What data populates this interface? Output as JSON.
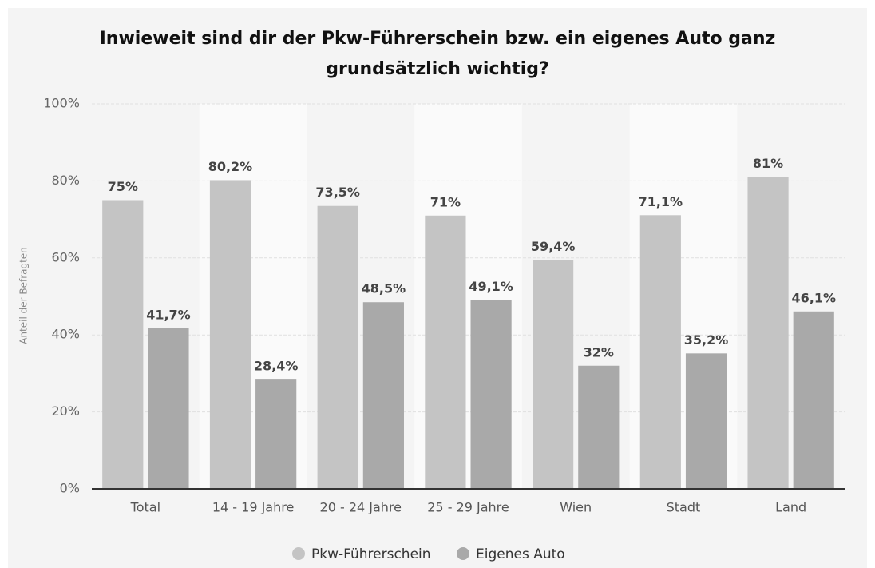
{
  "chart_data": {
    "type": "bar",
    "title": "Inwieweit sind dir der Pkw-Führerschein bzw. ein eigenes Auto ganz grundsätzlich wichtig?",
    "y_label": "Anteil der Befragten",
    "categories": [
      "Total",
      "14 - 19 Jahre",
      "20 - 24 Jahre",
      "25 - 29 Jahre",
      "Wien",
      "Stadt",
      "Land"
    ],
    "series": [
      {
        "name": "Pkw-Führerschein",
        "color": "#c4c4c4",
        "values": [
          75,
          80.2,
          73.5,
          71,
          59.4,
          71.1,
          81
        ],
        "value_labels": [
          "75%",
          "80,2%",
          "73,5%",
          "71%",
          "59,4%",
          "71,1%",
          "81%"
        ]
      },
      {
        "name": "Eigenes Auto",
        "color": "#a9a9a9",
        "values": [
          41.7,
          28.4,
          48.5,
          49.1,
          32,
          35.2,
          46.1
        ],
        "value_labels": [
          "41,7%",
          "28,4%",
          "48,5%",
          "49,1%",
          "32%",
          "35,2%",
          "46,1%"
        ]
      }
    ],
    "ylim": [
      0,
      100
    ],
    "yticks": [
      {
        "value": 0,
        "label": "0%"
      },
      {
        "value": 20,
        "label": "20%"
      },
      {
        "value": 40,
        "label": "40%"
      },
      {
        "value": 60,
        "label": "60%"
      },
      {
        "value": 80,
        "label": "80%"
      },
      {
        "value": 100,
        "label": "100%"
      }
    ],
    "grid": true,
    "legend": "bottom"
  }
}
